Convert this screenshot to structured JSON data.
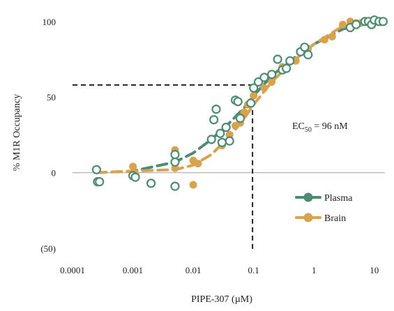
{
  "chart_data": {
    "type": "scatter",
    "xlabel": "PIPE-307 (µM)",
    "ylabel": "% M1R Occupancy",
    "x_scale": "log",
    "xlim": [
      0.0001,
      15
    ],
    "ylim": [
      -50,
      105
    ],
    "x_ticks": [
      {
        "value": 0.0001,
        "label": "0.0001"
      },
      {
        "value": 0.001,
        "label": "0.001"
      },
      {
        "value": 0.01,
        "label": "0.01"
      },
      {
        "value": 0.1,
        "label": "0.1"
      },
      {
        "value": 1,
        "label": "1"
      },
      {
        "value": 10,
        "label": "10"
      }
    ],
    "y_ticks": [
      {
        "value": 100,
        "label": "100"
      },
      {
        "value": 50,
        "label": "50"
      },
      {
        "value": 0,
        "label": "0"
      },
      {
        "value": -50,
        "label": "(50)"
      }
    ],
    "annotation": {
      "prefix": "EC",
      "subscript": "50",
      "suffix": " = 96 nM",
      "x": 0.096,
      "y": 58
    },
    "legend_position": "right",
    "grid": false,
    "series": [
      {
        "name": "Plasma",
        "color": "#4f8a72",
        "marker": "open-circle",
        "points": [
          [
            0.00025,
            2
          ],
          [
            0.00026,
            -6
          ],
          [
            0.00028,
            -6
          ],
          [
            0.001,
            -2
          ],
          [
            0.0011,
            -3
          ],
          [
            0.002,
            -7
          ],
          [
            0.005,
            -9
          ],
          [
            0.005,
            7
          ],
          [
            0.005,
            12
          ],
          [
            0.02,
            22
          ],
          [
            0.022,
            35
          ],
          [
            0.024,
            42
          ],
          [
            0.028,
            26
          ],
          [
            0.03,
            20
          ],
          [
            0.035,
            30
          ],
          [
            0.04,
            21
          ],
          [
            0.05,
            48
          ],
          [
            0.055,
            47
          ],
          [
            0.06,
            36
          ],
          [
            0.09,
            46
          ],
          [
            0.1,
            56
          ],
          [
            0.12,
            60
          ],
          [
            0.15,
            63
          ],
          [
            0.2,
            65
          ],
          [
            0.25,
            75
          ],
          [
            0.3,
            68
          ],
          [
            0.35,
            69
          ],
          [
            0.4,
            74
          ],
          [
            0.6,
            80
          ],
          [
            0.7,
            83
          ],
          [
            0.8,
            78
          ],
          [
            4,
            96
          ],
          [
            5,
            98
          ],
          [
            7,
            100
          ],
          [
            8,
            100
          ],
          [
            9,
            98
          ],
          [
            10,
            101
          ],
          [
            12,
            100
          ],
          [
            14,
            100
          ]
        ],
        "fit": [
          [
            0.00025,
            0
          ],
          [
            0.001,
            1
          ],
          [
            0.005,
            7
          ],
          [
            0.01,
            13
          ],
          [
            0.02,
            22
          ],
          [
            0.04,
            33
          ],
          [
            0.07,
            43
          ],
          [
            0.1,
            51
          ],
          [
            0.2,
            64
          ],
          [
            0.4,
            74
          ],
          [
            1,
            85
          ],
          [
            3,
            95
          ],
          [
            10,
            100
          ],
          [
            14,
            100
          ]
        ]
      },
      {
        "name": "Brain",
        "color": "#d9a24e",
        "marker": "filled-circle",
        "points": [
          [
            0.001,
            4
          ],
          [
            0.0011,
            -1
          ],
          [
            0.005,
            15
          ],
          [
            0.005,
            3
          ],
          [
            0.01,
            -8
          ],
          [
            0.01,
            8
          ],
          [
            0.012,
            6
          ],
          [
            0.03,
            18
          ],
          [
            0.04,
            25
          ],
          [
            0.05,
            31
          ],
          [
            0.06,
            33
          ],
          [
            0.07,
            40
          ],
          [
            0.08,
            45
          ],
          [
            0.1,
            51
          ],
          [
            0.15,
            56
          ],
          [
            0.2,
            60
          ],
          [
            0.3,
            70
          ],
          [
            0.5,
            74
          ],
          [
            0.8,
            82
          ],
          [
            1.5,
            88
          ],
          [
            2,
            90
          ],
          [
            3,
            98
          ],
          [
            4,
            100
          ],
          [
            5,
            99
          ],
          [
            6,
            99
          ],
          [
            10,
            101
          ]
        ],
        "fit": [
          [
            0.00025,
            0
          ],
          [
            0.001,
            1
          ],
          [
            0.005,
            2
          ],
          [
            0.01,
            5
          ],
          [
            0.02,
            12
          ],
          [
            0.04,
            24
          ],
          [
            0.07,
            36
          ],
          [
            0.1,
            45
          ],
          [
            0.2,
            60
          ],
          [
            0.4,
            72
          ],
          [
            1,
            85
          ],
          [
            3,
            97
          ],
          [
            10,
            100
          ],
          [
            14,
            100
          ]
        ]
      }
    ]
  }
}
